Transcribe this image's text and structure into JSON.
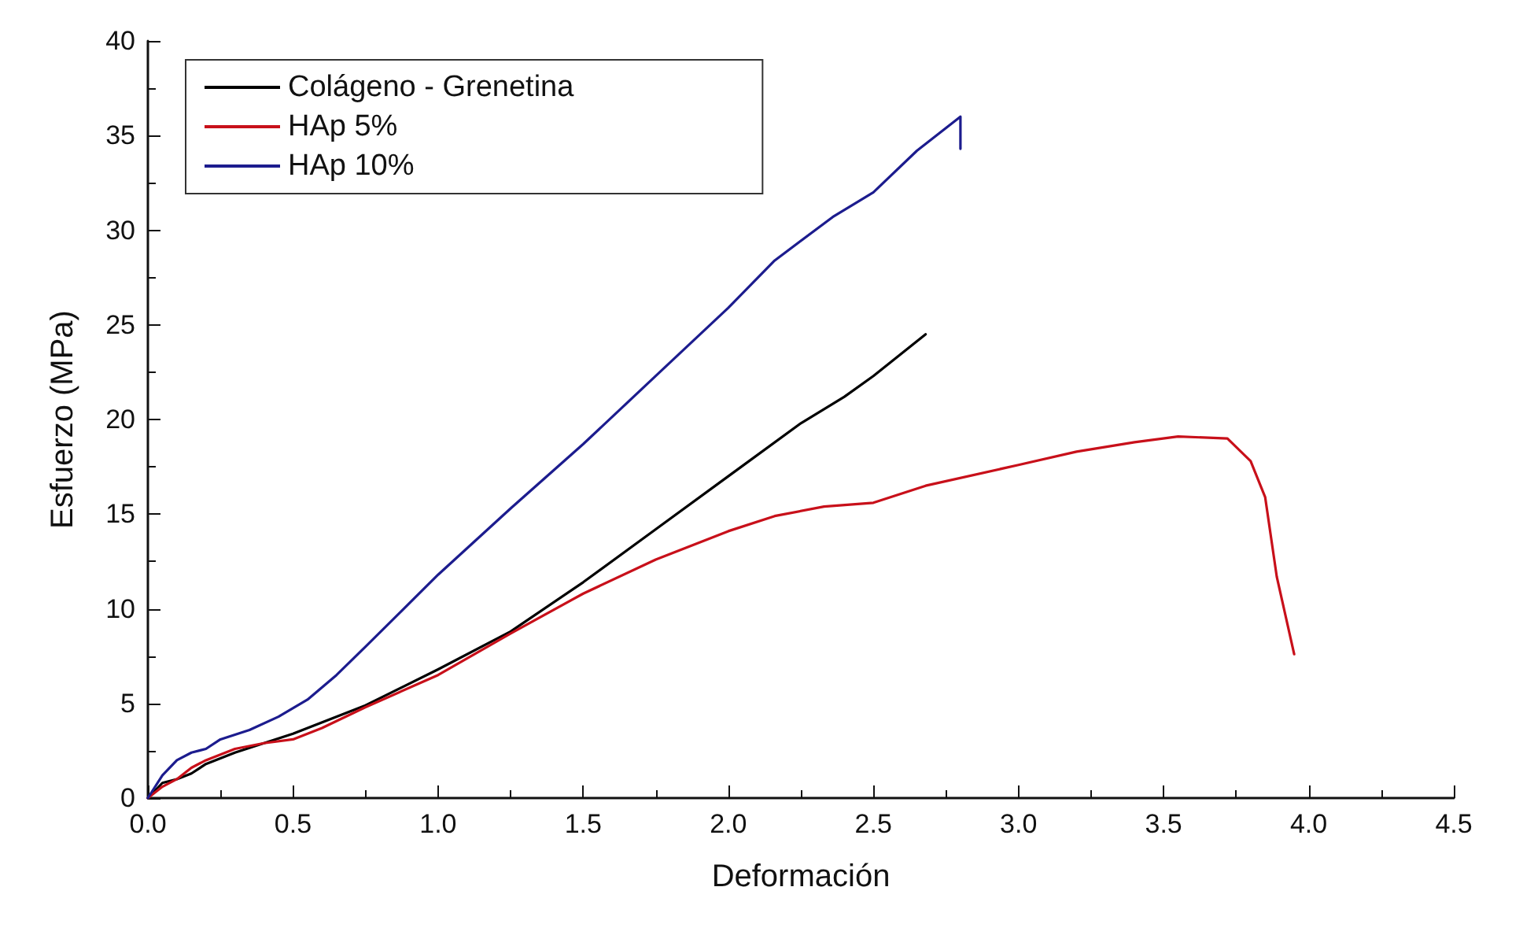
{
  "chart_data": {
    "type": "line",
    "xlabel": "Deformación",
    "ylabel": "Esfuerzo (MPa)",
    "xlim": [
      0,
      4.5
    ],
    "ylim": [
      0,
      40
    ],
    "xticks": [
      {
        "value": 0,
        "label": "0.0"
      },
      0.5,
      {
        "value": 1,
        "label": "1.0"
      },
      1.5,
      {
        "value": 2,
        "label": "2.0"
      },
      2.5,
      {
        "value": 3,
        "label": "3.0"
      },
      3.5,
      {
        "value": 4,
        "label": "4.0"
      },
      4.5
    ],
    "yticks": [
      0,
      5,
      10,
      15,
      20,
      25,
      30,
      35,
      40
    ],
    "grid": false,
    "legend": "top left",
    "marker": "none",
    "line_style": "solid",
    "series": [
      {
        "name": "Colágeno - Grenetina",
        "color": "#000000",
        "x": [
          0,
          0.05,
          0.1,
          0.15,
          0.2,
          0.3,
          0.5,
          0.75,
          1.0,
          1.25,
          1.5,
          1.75,
          2.0,
          2.25,
          2.4,
          2.5,
          2.68
        ],
        "values": [
          0,
          0.8,
          1.0,
          1.3,
          1.8,
          2.4,
          3.4,
          4.9,
          6.8,
          8.8,
          11.4,
          14.2,
          17.0,
          19.8,
          21.2,
          22.3,
          24.5
        ]
      },
      {
        "name": "HAp 5%",
        "color": "#c8101a",
        "x": [
          0,
          0.05,
          0.1,
          0.15,
          0.2,
          0.3,
          0.4,
          0.5,
          0.6,
          0.75,
          1.0,
          1.25,
          1.5,
          1.75,
          2.0,
          2.16,
          2.33,
          2.5,
          2.68,
          3.0,
          3.2,
          3.4,
          3.55,
          3.72,
          3.8,
          3.85,
          3.89,
          3.95
        ],
        "values": [
          0,
          0.6,
          1.0,
          1.6,
          2.0,
          2.6,
          2.9,
          3.1,
          3.7,
          4.8,
          6.5,
          8.7,
          10.8,
          12.6,
          14.1,
          14.9,
          15.4,
          15.6,
          16.5,
          17.6,
          18.3,
          18.8,
          19.1,
          19.0,
          17.8,
          15.9,
          11.7,
          7.6
        ]
      },
      {
        "name": "HAp 10%",
        "color": "#1c1c8e",
        "x": [
          0,
          0.05,
          0.1,
          0.15,
          0.2,
          0.25,
          0.35,
          0.45,
          0.55,
          0.65,
          0.75,
          1.0,
          1.25,
          1.5,
          1.75,
          2.0,
          2.16,
          2.36,
          2.5,
          2.65,
          2.8,
          2.8
        ],
        "values": [
          0,
          1.2,
          2.0,
          2.4,
          2.6,
          3.1,
          3.6,
          4.3,
          5.2,
          6.5,
          8.0,
          11.8,
          15.3,
          18.7,
          22.3,
          25.9,
          28.4,
          30.7,
          32.0,
          34.2,
          36.0,
          34.3
        ]
      }
    ]
  }
}
